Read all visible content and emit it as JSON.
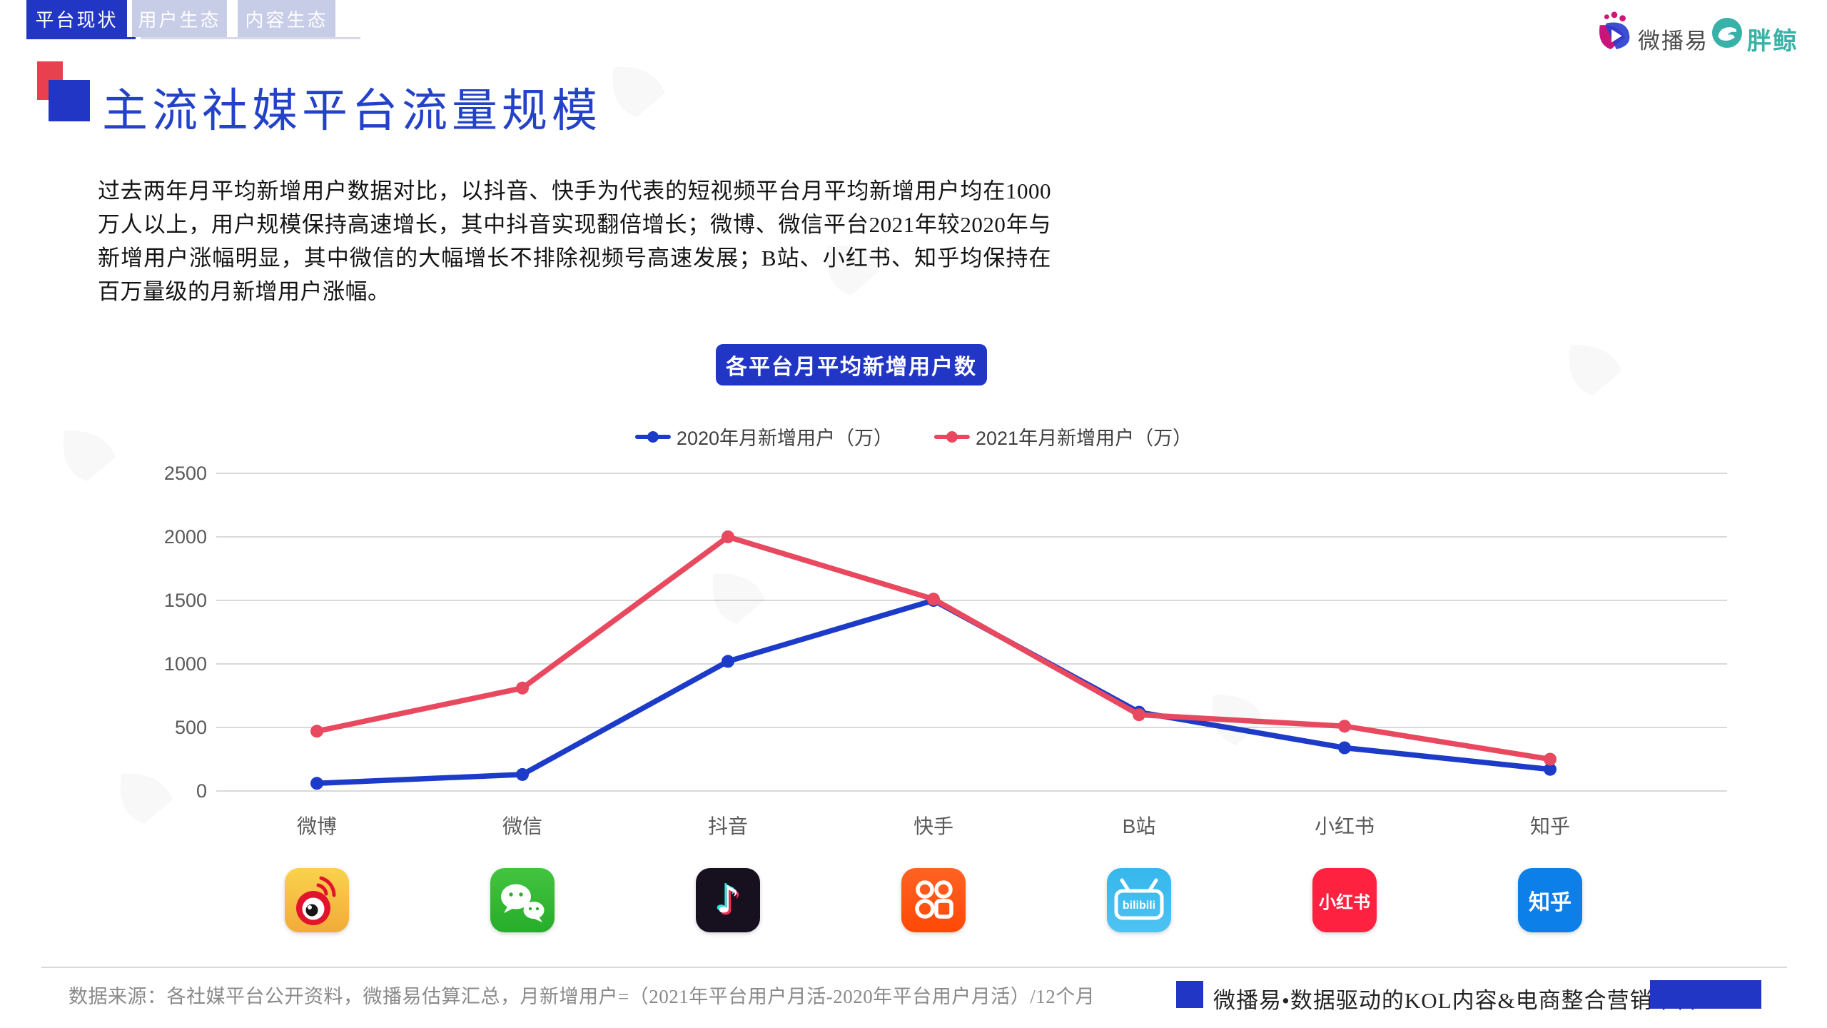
{
  "nav": {
    "tabs": [
      {
        "label": "平台现状",
        "active": true
      },
      {
        "label": "用户生态",
        "active": false
      },
      {
        "label": "内容生态",
        "active": false
      }
    ]
  },
  "brand": {
    "weiboyi": "微播易",
    "pangjing": "胖鲸"
  },
  "page": {
    "title": "主流社媒平台流量规模",
    "paragraph": "过去两年月平均新增用户数据对比，以抖音、快手为代表的短视频平台月平均新增用户均在1000万人以上，用户规模保持高速增长，其中抖音实现翻倍增长；微博、微信平台2021年较2020年与新增用户涨幅明显，其中微信的大幅增长不排除视频号高速发展；B站、小红书、知乎均保持在百万量级的月新增用户涨幅。"
  },
  "chart_data": {
    "type": "line",
    "title": "各平台月平均新增用户数",
    "categories": [
      "微博",
      "微信",
      "抖音",
      "快手",
      "B站",
      "小红书",
      "知乎"
    ],
    "series": [
      {
        "name": "2020年月新增用户（万）",
        "color": "#1c3bc8",
        "values": [
          60,
          130,
          1020,
          1500,
          620,
          340,
          170
        ]
      },
      {
        "name": "2021年月新增用户（万）",
        "color": "#e8495f",
        "values": [
          470,
          810,
          2000,
          1510,
          600,
          510,
          250
        ]
      }
    ],
    "ylim": [
      0,
      2500
    ],
    "yticks": [
      0,
      500,
      1000,
      1500,
      2000,
      2500
    ],
    "grid": true,
    "legend_position": "top"
  },
  "platforms": [
    {
      "label": "微博",
      "icon": "weibo-icon",
      "bg": "linear-gradient(180deg,#fad24e,#f2ab38)"
    },
    {
      "label": "微信",
      "icon": "wechat-icon",
      "bg": "linear-gradient(180deg,#43c440,#27ad2a)"
    },
    {
      "label": "抖音",
      "icon": "douyin-icon",
      "bg": "#16101f"
    },
    {
      "label": "快手",
      "icon": "kuaishou-icon",
      "bg": "linear-gradient(180deg,#ff6223,#ff4906)"
    },
    {
      "label": "B站",
      "icon": "bilibili-icon",
      "bg": "linear-gradient(180deg,#35b7ec,#4ec3f2)",
      "text": "bilibili"
    },
    {
      "label": "小红书",
      "icon": "xiaohongshu-icon",
      "bg": "#fe2240",
      "text": "小红书"
    },
    {
      "label": "知乎",
      "icon": "zhihu-icon",
      "bg": "#0d7fe8",
      "text": "知乎"
    }
  ],
  "footer": {
    "source": "数据来源：各社媒平台公开资料，微播易估算汇总，月新增用户=（2021年平台用户月活-2020年平台用户月活）/12个月",
    "tagline": "微播易•数据驱动的KOL内容&电商整合营销平台"
  },
  "colors": {
    "accent": "#2236c6",
    "inactive_tab": "#c7cce7",
    "grid_line": "#d9d9d9",
    "axis_text": "#595959"
  }
}
